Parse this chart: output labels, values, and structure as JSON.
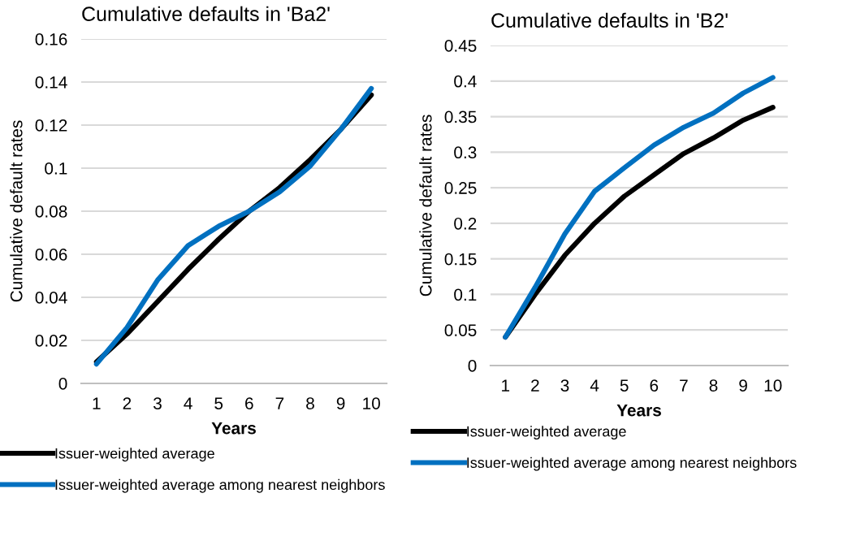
{
  "chart_data": [
    {
      "type": "line",
      "title": "Cumulative defaults in 'Ba2'",
      "xlabel": "Years",
      "ylabel": "Cumulative default rates",
      "categories": [
        "1",
        "2",
        "3",
        "4",
        "5",
        "6",
        "7",
        "8",
        "9",
        "10"
      ],
      "ylim": [
        0,
        0.16
      ],
      "yticks": [
        {
          "value": 0,
          "label": "0"
        },
        0.02,
        0.04,
        0.06,
        0.08,
        {
          "value": 0.1,
          "label": "0.1"
        },
        0.12,
        0.14,
        0.16
      ],
      "grid": "y",
      "legend": "bottom",
      "series": [
        {
          "name": "Issuer-weighted average",
          "color": "#000000",
          "values": [
            0.01,
            0.023,
            0.038,
            0.053,
            0.067,
            0.08,
            0.091,
            0.104,
            0.118,
            0.134
          ]
        },
        {
          "name": "Issuer-weighted average among nearest neighbors",
          "color": "#0070c0",
          "values": [
            0.009,
            0.026,
            0.048,
            0.064,
            0.073,
            0.08,
            0.089,
            0.101,
            0.118,
            0.137
          ]
        }
      ]
    },
    {
      "type": "line",
      "title": "Cumulative defaults in 'B2'",
      "xlabel": "Years",
      "ylabel": "Cumulative default rates",
      "categories": [
        "1",
        "2",
        "3",
        "4",
        "5",
        "6",
        "7",
        "8",
        "9",
        "10"
      ],
      "ylim": [
        0,
        0.45
      ],
      "yticks": [
        {
          "value": 0,
          "label": "0"
        },
        0.05,
        {
          "value": 0.1,
          "label": "0.1"
        },
        0.15,
        {
          "value": 0.2,
          "label": "0.2"
        },
        0.25,
        {
          "value": 0.3,
          "label": "0.3"
        },
        0.35,
        {
          "value": 0.4,
          "label": "0.4"
        },
        0.45
      ],
      "grid": "y",
      "legend": "bottom",
      "series": [
        {
          "name": "Issuer-weighted average",
          "color": "#000000",
          "values": [
            0.04,
            0.1,
            0.155,
            0.2,
            0.238,
            0.268,
            0.298,
            0.32,
            0.345,
            0.363
          ]
        },
        {
          "name": "Issuer-weighted average among nearest neighbors",
          "color": "#0070c0",
          "values": [
            0.04,
            0.11,
            0.185,
            0.245,
            0.278,
            0.31,
            0.335,
            0.355,
            0.383,
            0.405
          ]
        }
      ]
    }
  ]
}
